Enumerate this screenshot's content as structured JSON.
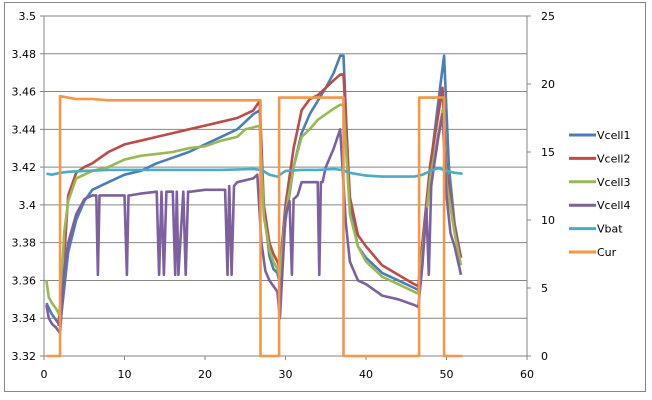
{
  "chart_data": {
    "type": "line",
    "title": "",
    "xlabel": "",
    "ylabel": "",
    "y2label": "",
    "xlim": [
      0,
      60
    ],
    "ylim": [
      3.32,
      3.5
    ],
    "y2lim": [
      0,
      25
    ],
    "x_ticks": [
      "0",
      "10",
      "20",
      "30",
      "40",
      "50",
      "60"
    ],
    "y_ticks": [
      "3.5",
      "3.48",
      "3.46",
      "3.44",
      "3.42",
      "3.4",
      "3.38",
      "3.36",
      "3.34",
      "3.32"
    ],
    "y2_ticks": [
      "25",
      "20",
      "15",
      "10",
      "5",
      "0"
    ],
    "grid": true,
    "legend_position": "right",
    "series": [
      {
        "name": "Vcell1",
        "axis": "left",
        "color": "#4A7EBB",
        "x": [
          0.3,
          1,
          2,
          3,
          4,
          5,
          6,
          8,
          10,
          12,
          14,
          16,
          18,
          20,
          22,
          24,
          25,
          26,
          26.8,
          27.3,
          28,
          28.5,
          29,
          29.3,
          30,
          31,
          32,
          33,
          34,
          35,
          36,
          36.8,
          37.2,
          38,
          39,
          40,
          42,
          44,
          46,
          46.5,
          47,
          48,
          49,
          49.7,
          50.3,
          51,
          51.8
        ],
        "y": [
          3.348,
          3.342,
          3.336,
          3.375,
          3.392,
          3.402,
          3.408,
          3.412,
          3.416,
          3.418,
          3.422,
          3.425,
          3.428,
          3.432,
          3.436,
          3.44,
          3.444,
          3.448,
          3.45,
          3.398,
          3.373,
          3.366,
          3.364,
          3.358,
          3.392,
          3.42,
          3.438,
          3.448,
          3.455,
          3.462,
          3.47,
          3.479,
          3.479,
          3.398,
          3.378,
          3.372,
          3.364,
          3.36,
          3.356,
          3.355,
          3.378,
          3.42,
          3.455,
          3.479,
          3.42,
          3.39,
          3.372
        ]
      },
      {
        "name": "Vcell2",
        "axis": "left",
        "color": "#BE4B48",
        "x": [
          1.8,
          2.5,
          3,
          4,
          5,
          6,
          8,
          10,
          12,
          14,
          16,
          18,
          20,
          22,
          24,
          25,
          26,
          26.8,
          27.3,
          28,
          28.5,
          29,
          29.3,
          30,
          31,
          32,
          33,
          34,
          35,
          36,
          36.8,
          37.2,
          38,
          39,
          40,
          42,
          44,
          46,
          46.5,
          47,
          48,
          49,
          49.5,
          50,
          51,
          51.8
        ],
        "y": [
          3.336,
          3.372,
          3.405,
          3.417,
          3.42,
          3.422,
          3.428,
          3.432,
          3.434,
          3.436,
          3.438,
          3.44,
          3.442,
          3.444,
          3.446,
          3.448,
          3.45,
          3.455,
          3.4,
          3.38,
          3.374,
          3.37,
          3.366,
          3.4,
          3.43,
          3.45,
          3.456,
          3.458,
          3.462,
          3.466,
          3.469,
          3.469,
          3.404,
          3.384,
          3.378,
          3.368,
          3.363,
          3.358,
          3.357,
          3.38,
          3.422,
          3.448,
          3.462,
          3.418,
          3.388,
          3.372
        ]
      },
      {
        "name": "Vcell3",
        "axis": "left",
        "color": "#98B954",
        "x": [
          0.3,
          0.6,
          1,
          1.5,
          2,
          2.5,
          3,
          4,
          5,
          6,
          8,
          10,
          12,
          14,
          16,
          18,
          20,
          22,
          24,
          25,
          26,
          26.8,
          27.3,
          28,
          28.5,
          29,
          29.3,
          30,
          31,
          32,
          33,
          34,
          35,
          36,
          36.8,
          37.2,
          38,
          39,
          40,
          42,
          44,
          46,
          46.5,
          47,
          48,
          49,
          49.5,
          50,
          51,
          51.8
        ],
        "y": [
          3.36,
          3.351,
          3.348,
          3.345,
          3.341,
          3.385,
          3.402,
          3.414,
          3.416,
          3.418,
          3.42,
          3.424,
          3.426,
          3.427,
          3.428,
          3.43,
          3.431,
          3.434,
          3.436,
          3.44,
          3.441,
          3.442,
          3.394,
          3.376,
          3.37,
          3.366,
          3.362,
          3.395,
          3.42,
          3.436,
          3.44,
          3.445,
          3.448,
          3.451,
          3.453,
          3.453,
          3.395,
          3.378,
          3.37,
          3.362,
          3.358,
          3.354,
          3.353,
          3.375,
          3.415,
          3.438,
          3.45,
          3.412,
          3.385,
          3.368
        ]
      },
      {
        "name": "Vcell4",
        "axis": "left",
        "color": "#7D60A0",
        "x": [
          0.3,
          0.6,
          1,
          1.5,
          2,
          2.5,
          3,
          4,
          5,
          6,
          6.5,
          6.7,
          6.9,
          8,
          10,
          10.3,
          10.5,
          10.7,
          12,
          14,
          14.3,
          14.6,
          14.9,
          15.2,
          16,
          16.3,
          16.5,
          16.7,
          17.3,
          17.6,
          17.9,
          18.2,
          20,
          22,
          22.5,
          22.8,
          23,
          23.3,
          23.6,
          24,
          26,
          26.5,
          27,
          27.5,
          28,
          29,
          29.3,
          30,
          30.5,
          30.8,
          31,
          31.5,
          32,
          34,
          34.2,
          34.4,
          34.6,
          35,
          36,
          36.8,
          37.5,
          38,
          39,
          40,
          42,
          44,
          46,
          46.5,
          47,
          47.5,
          47.8,
          48.1,
          48.5,
          49,
          49.5,
          50,
          50.5,
          51,
          51.8
        ],
        "y": [
          3.347,
          3.34,
          3.337,
          3.335,
          3.332,
          3.365,
          3.38,
          3.395,
          3.403,
          3.405,
          3.405,
          3.363,
          3.405,
          3.405,
          3.405,
          3.363,
          3.405,
          3.405,
          3.406,
          3.407,
          3.363,
          3.407,
          3.363,
          3.407,
          3.407,
          3.363,
          3.407,
          3.363,
          3.407,
          3.363,
          3.407,
          3.407,
          3.408,
          3.408,
          3.408,
          3.363,
          3.41,
          3.363,
          3.41,
          3.412,
          3.414,
          3.416,
          3.38,
          3.365,
          3.36,
          3.354,
          3.34,
          3.395,
          3.402,
          3.363,
          3.403,
          3.405,
          3.412,
          3.412,
          3.363,
          3.412,
          3.412,
          3.42,
          3.43,
          3.44,
          3.39,
          3.37,
          3.36,
          3.358,
          3.352,
          3.35,
          3.347,
          3.346,
          3.368,
          3.398,
          3.363,
          3.41,
          3.422,
          3.436,
          3.448,
          3.405,
          3.385,
          3.378,
          3.363
        ]
      },
      {
        "name": "Vbat",
        "axis": "left",
        "color": "#4BACC6",
        "x": [
          0.3,
          1,
          2,
          3,
          5,
          8,
          10,
          14,
          18,
          22,
          26,
          27,
          28,
          29,
          30,
          32,
          34,
          36,
          37,
          38,
          40,
          42,
          44,
          46,
          47,
          48,
          49,
          50,
          51,
          52
        ],
        "y": [
          3.4165,
          3.416,
          3.417,
          3.4175,
          3.418,
          3.4185,
          3.4185,
          3.4185,
          3.4185,
          3.4185,
          3.419,
          3.4185,
          3.416,
          3.415,
          3.418,
          3.4185,
          3.4185,
          3.419,
          3.4185,
          3.417,
          3.4155,
          3.415,
          3.415,
          3.415,
          3.416,
          3.418,
          3.4195,
          3.418,
          3.417,
          3.4165
        ]
      },
      {
        "name": "Cur",
        "axis": "right",
        "color": "#F79646",
        "x": [
          0.3,
          2,
          2,
          4,
          6,
          8,
          10,
          14,
          18,
          22,
          26,
          26.9,
          26.9,
          27.5,
          29,
          29.2,
          29.2,
          33,
          37,
          37.2,
          37.2,
          40,
          46.5,
          46.6,
          46.6,
          48,
          49.6,
          49.7,
          49.7,
          52
        ],
        "y": [
          0,
          0,
          19.1,
          18.9,
          18.9,
          18.8,
          18.8,
          18.8,
          18.8,
          18.8,
          18.8,
          18.8,
          0,
          0,
          0,
          0,
          19.0,
          19.0,
          19.0,
          19.0,
          0,
          0,
          0,
          0,
          19.0,
          19.0,
          19.0,
          19.0,
          0,
          0
        ]
      }
    ]
  },
  "legend": {
    "items": [
      {
        "label": "Vcell1",
        "color": "#4A7EBB"
      },
      {
        "label": "Vcell2",
        "color": "#BE4B48"
      },
      {
        "label": "Vcell3",
        "color": "#98B954"
      },
      {
        "label": "Vcell4",
        "color": "#7D60A0"
      },
      {
        "label": "Vbat",
        "color": "#4BACC6"
      },
      {
        "label": "Cur",
        "color": "#F79646"
      }
    ]
  },
  "style": {
    "grid_color": "#868686",
    "axis_color": "#868686",
    "frame_color": "#868686"
  }
}
